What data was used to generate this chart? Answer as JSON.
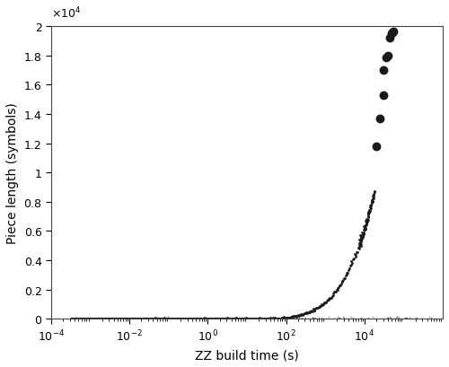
{
  "xlabel": "ZZ build time (s)",
  "ylabel": "Piece length (symbols)",
  "xlim_log": [
    -4,
    6
  ],
  "ylim": [
    0,
    20000
  ],
  "background_color": "#ffffff",
  "point_color": "#1a1a1a",
  "curve_seed": 42,
  "outlier_x": [
    20000,
    25000,
    30000,
    31000,
    35000,
    40000,
    45000,
    50000,
    52000,
    55000
  ],
  "outlier_y": [
    11800,
    13700,
    15250,
    17000,
    17850,
    18000,
    19200,
    19500,
    19550,
    19650
  ]
}
